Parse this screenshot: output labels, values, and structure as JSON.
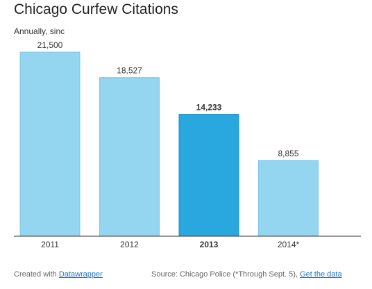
{
  "chart_data": {
    "type": "bar",
    "title": "Chicago Curfew Citations",
    "subtitle": "Annually, sinc",
    "categories": [
      "2011",
      "2012",
      "2013",
      "2014*"
    ],
    "values": [
      21500,
      18527,
      14233,
      8855
    ],
    "value_labels": [
      "21,500",
      "18,527",
      "14,233",
      "8,855"
    ],
    "highlight_index": 2,
    "ylim": [
      0,
      21500
    ],
    "grid": false,
    "colors": {
      "bar": "#94d5f0",
      "bar_stroke": "#7fc6e6",
      "highlight": "#29a8e0",
      "highlight_stroke": "#1b8fc4",
      "baseline": "#333333"
    }
  },
  "footer": {
    "credit_prefix": "Created with",
    "credit_link": "Datawrapper",
    "source_prefix": "Source: Chicago Police (*Through Sept. 5),",
    "source_link": "Get the data"
  }
}
